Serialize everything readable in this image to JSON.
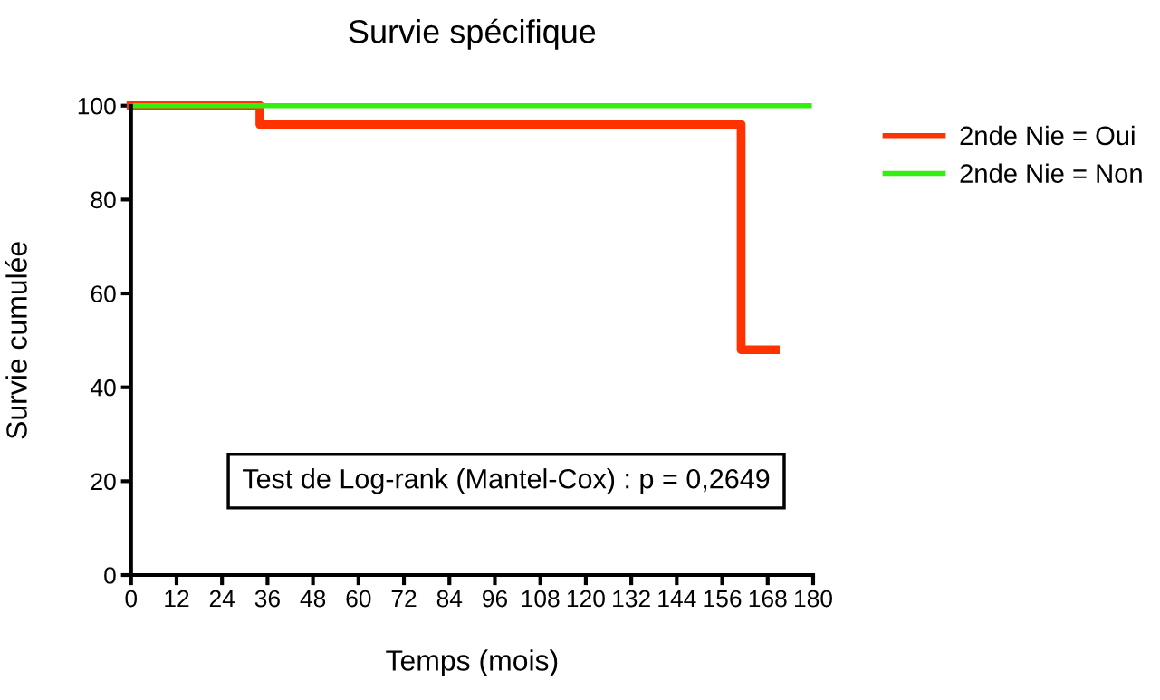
{
  "chart_data": {
    "type": "step",
    "title": "Survie spécifique",
    "xlabel": "Temps (mois)",
    "ylabel": "Survie cumulée",
    "series": [
      {
        "name": "2nde Nie = Oui",
        "color": "#ff3300",
        "x": [
          0,
          34,
          161,
          170
        ],
        "values": [
          100,
          96,
          48,
          48
        ]
      },
      {
        "name": "2nde Nie = Non",
        "color": "#33ee11",
        "x": [
          0,
          179
        ],
        "values": [
          100,
          100
        ]
      }
    ],
    "xlim": [
      0,
      180
    ],
    "xticks": [
      0,
      12,
      24,
      36,
      48,
      60,
      72,
      84,
      96,
      108,
      120,
      132,
      144,
      156,
      168,
      180
    ],
    "ylim": [
      0,
      100
    ],
    "yticks": [
      0,
      20,
      40,
      60,
      80,
      100
    ],
    "annotations": [
      "Test de Log-rank (Mantel-Cox) : p = 0,2649"
    ],
    "grid": false,
    "legend": "top right",
    "line_style": "solid"
  }
}
